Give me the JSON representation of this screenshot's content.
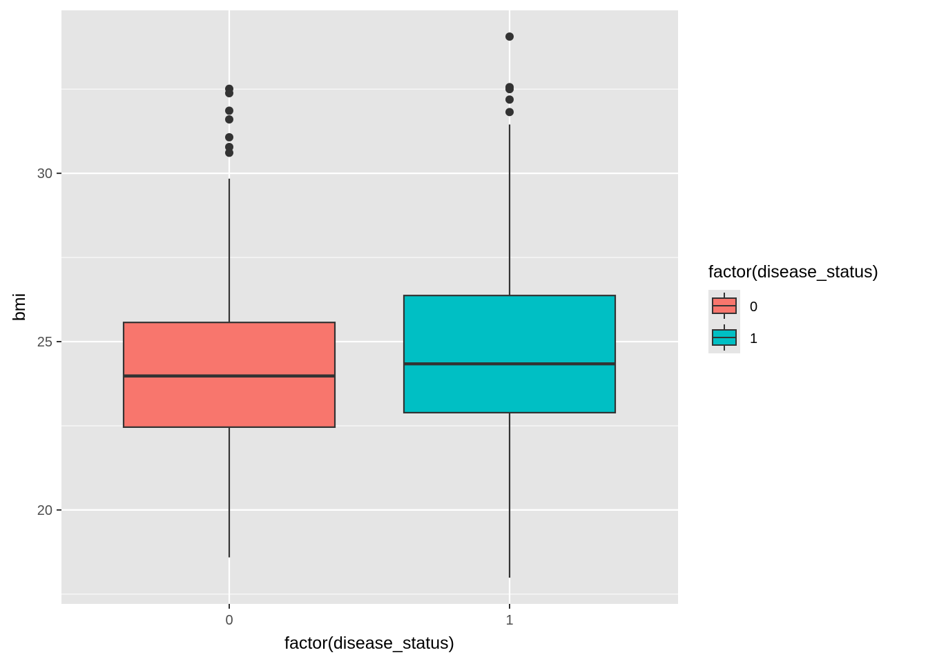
{
  "chart_data": {
    "type": "boxplot",
    "xlabel": "factor(disease_status)",
    "ylabel": "bmi",
    "categories": [
      "0",
      "1"
    ],
    "ylim": [
      17.21,
      34.84
    ],
    "yticks": [
      20,
      25,
      30
    ],
    "grid": true,
    "legend": {
      "title": "factor(disease_status)",
      "placement": "right",
      "entries": [
        "0",
        "1"
      ]
    },
    "colors": {
      "0": "#F8766D",
      "1": "#00BFC4",
      "panel": "#EBEBEB",
      "grid": "#FFFFFF"
    },
    "series": [
      {
        "category": "0",
        "lower_whisker": 18.59,
        "q1": 22.46,
        "median": 23.98,
        "q3": 25.57,
        "upper_whisker": 29.84,
        "outliers": [
          32.51,
          32.38,
          31.86,
          31.6,
          31.07,
          30.78,
          30.61
        ]
      },
      {
        "category": "1",
        "lower_whisker": 17.99,
        "q1": 22.89,
        "median": 24.34,
        "q3": 26.37,
        "upper_whisker": 31.45,
        "outliers": [
          34.06,
          32.56,
          32.5,
          32.19,
          31.82
        ]
      }
    ]
  }
}
